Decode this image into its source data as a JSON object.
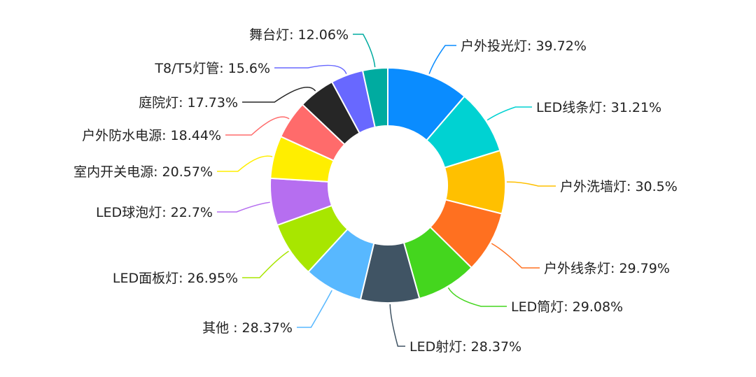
{
  "chart_data": {
    "type": "pie",
    "variant": "donut",
    "categories": [
      "户外投光灯",
      "LED线条灯",
      "户外洗墙灯",
      "户外线条灯",
      "LED筒灯",
      "LED射灯",
      "其他 ",
      "LED面板灯",
      "LED球泡灯",
      "室内开关电源",
      "户外防水电源",
      "庭院灯",
      "T8/T5灯管",
      "舞台灯"
    ],
    "values": [
      39.72,
      31.21,
      30.5,
      29.79,
      29.08,
      28.37,
      28.37,
      26.95,
      22.7,
      20.57,
      18.44,
      17.73,
      15.6,
      12.06
    ],
    "labels": [
      "户外投光灯: 39.72%",
      "LED线条灯: 31.21%",
      "户外洗墙灯: 30.5%",
      "户外线条灯: 29.79%",
      "LED筒灯: 29.08%",
      "LED射灯: 28.37%",
      "其他 : 28.37%",
      "LED面板灯: 26.95%",
      "LED球泡灯: 22.7%",
      "室内开关电源: 20.57%",
      "户外防水电源: 18.44%",
      "庭院灯: 17.73%",
      "T8/T5灯管: 15.6%",
      "舞台灯: 12.06%"
    ],
    "colors": [
      "#0a8cff",
      "#00d2d2",
      "#ffc000",
      "#ff7020",
      "#44d61e",
      "#405464",
      "#58b8ff",
      "#a8e600",
      "#b66ef0",
      "#ffee00",
      "#ff6b6b",
      "#262626",
      "#6868ff",
      "#00aba0"
    ],
    "legend": "none",
    "title": ""
  }
}
